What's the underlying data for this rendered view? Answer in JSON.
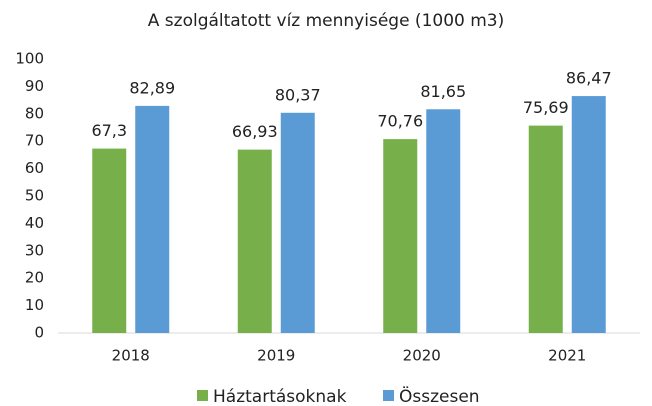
{
  "chart_data": {
    "type": "bar",
    "title": "A szolgáltatott víz mennyisége (1000 m3)",
    "categories": [
      "2018",
      "2019",
      "2020",
      "2021"
    ],
    "series": [
      {
        "name": "Háztartásoknak",
        "color": "#77b04b",
        "values": [
          67.3,
          66.93,
          70.76,
          75.69
        ],
        "value_labels": [
          "67,3",
          "66,93",
          "70,76",
          "75,69"
        ]
      },
      {
        "name": "Összesen",
        "color": "#5b9bd5",
        "values": [
          82.89,
          80.37,
          81.65,
          86.47
        ],
        "value_labels": [
          "82,89",
          "80,37",
          "81,65",
          "86,47"
        ]
      }
    ],
    "ylim": [
      0,
      100
    ],
    "yticks": [
      0,
      10,
      20,
      30,
      40,
      50,
      60,
      70,
      80,
      90,
      100
    ],
    "grid": false,
    "legend": "bottom"
  }
}
